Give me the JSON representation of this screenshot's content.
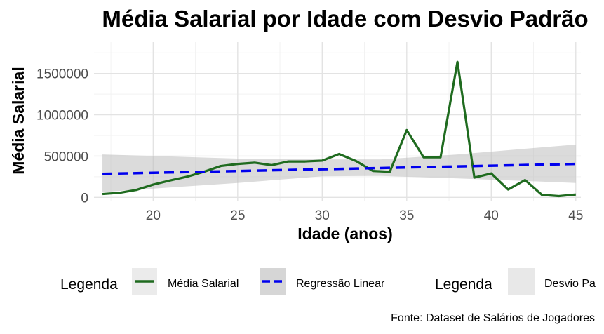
{
  "chart_data": {
    "type": "line",
    "title": "Média Salarial por Idade com Desvio Padrão",
    "xlabel": "Idade (anos)",
    "ylabel": "Média Salarial",
    "caption": "Fonte: Dataset de Salários de Jogadores",
    "xlim": [
      16.5,
      45.3
    ],
    "ylim": [
      -40000,
      1880000
    ],
    "x_ticks": [
      20,
      25,
      30,
      35,
      40,
      45
    ],
    "y_ticks": [
      0,
      500000,
      1000000,
      1500000
    ],
    "y_tick_labels": [
      "0",
      "500000",
      "1000000",
      "1500000"
    ],
    "grid": true,
    "legend_placement": "bottom",
    "legends": [
      {
        "title": "Legenda",
        "entries": [
          "Média Salarial",
          "Regressão Linear"
        ]
      },
      {
        "title": "Legenda",
        "entries": [
          "Desvio Pa"
        ]
      }
    ],
    "series": [
      {
        "name": "Média Salarial",
        "color": "#1f6b1f",
        "style": "solid",
        "x": [
          17,
          18,
          19,
          20,
          21,
          22,
          23,
          24,
          25,
          26,
          27,
          28,
          29,
          30,
          31,
          32,
          33,
          34,
          35,
          36,
          37,
          38,
          39,
          40,
          41,
          42,
          43,
          44,
          45
        ],
        "y": [
          40000,
          55000,
          90000,
          155000,
          205000,
          250000,
          310000,
          380000,
          405000,
          420000,
          390000,
          435000,
          435000,
          445000,
          525000,
          440000,
          320000,
          310000,
          815000,
          485000,
          485000,
          1640000,
          240000,
          290000,
          95000,
          210000,
          30000,
          15000,
          35000
        ]
      },
      {
        "name": "Regressão Linear",
        "color": "#0000ee",
        "style": "dashed",
        "x": [
          17,
          45
        ],
        "y": [
          285000,
          405000
        ]
      },
      {
        "name": "Desvio Padrão",
        "color": "#bebebe",
        "style": "band",
        "x": [
          17,
          25,
          30,
          33.5,
          38,
          45
        ],
        "upper": [
          520000,
          470000,
          460000,
          460000,
          520000,
          640000
        ],
        "lower": [
          65000,
          175000,
          255000,
          260000,
          230000,
          175000
        ]
      }
    ]
  }
}
